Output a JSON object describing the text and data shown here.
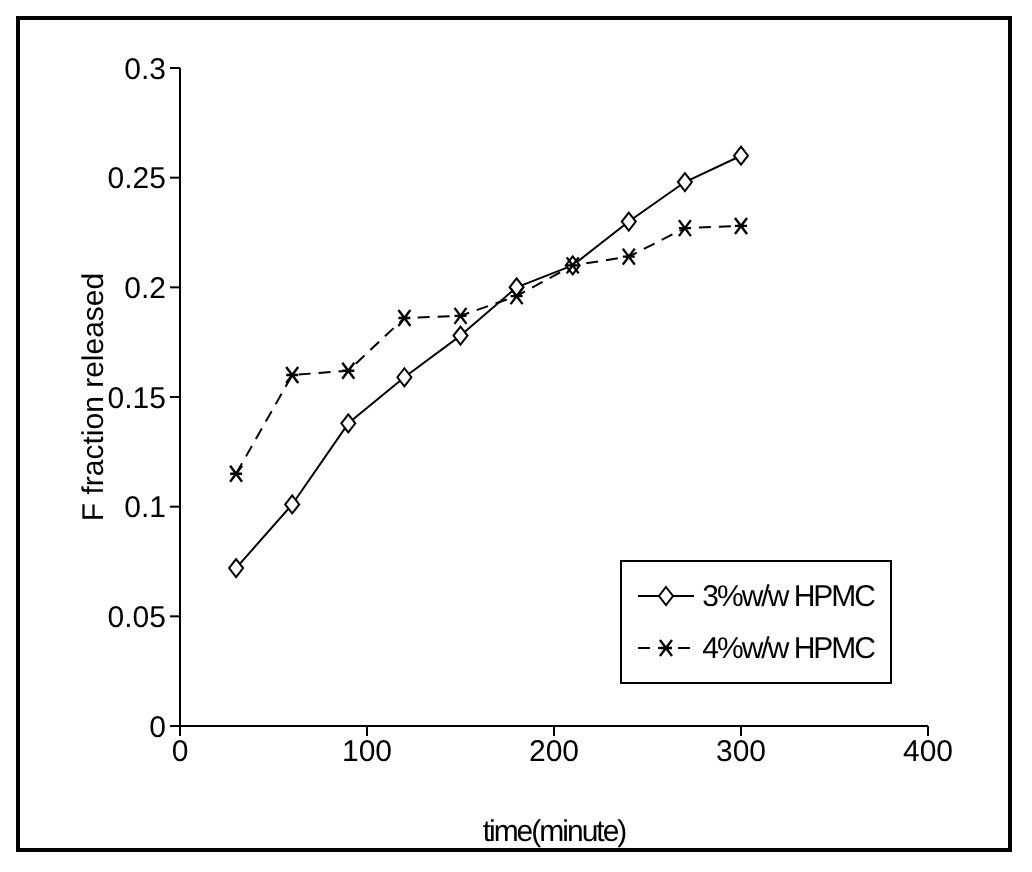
{
  "chart_data": {
    "type": "line",
    "xlabel": "time(minute)",
    "ylabel": "F fraction released",
    "x": [
      30,
      60,
      90,
      120,
      150,
      180,
      210,
      240,
      270,
      300
    ],
    "series": [
      {
        "name": "3%w/w HPMC",
        "color": "#000000",
        "marker": "diamond",
        "line_style": "solid",
        "values": [
          0.072,
          0.101,
          0.138,
          0.159,
          0.178,
          0.2,
          0.21,
          0.23,
          0.248,
          0.26
        ]
      },
      {
        "name": "4%w/w HPMC",
        "color": "#000000",
        "marker": "cross",
        "line_style": "dashed",
        "values": [
          0.115,
          0.16,
          0.162,
          0.186,
          0.187,
          0.196,
          0.21,
          0.214,
          0.227,
          0.228
        ]
      }
    ],
    "xlim": [
      0,
      400
    ],
    "xticks": [
      0,
      100,
      200,
      300,
      400
    ],
    "ylim": [
      0,
      0.3
    ],
    "yticks": [
      0,
      0.05,
      0.1,
      0.15,
      0.2,
      0.25,
      0.3
    ],
    "grid": false,
    "legend": "bottom right"
  }
}
